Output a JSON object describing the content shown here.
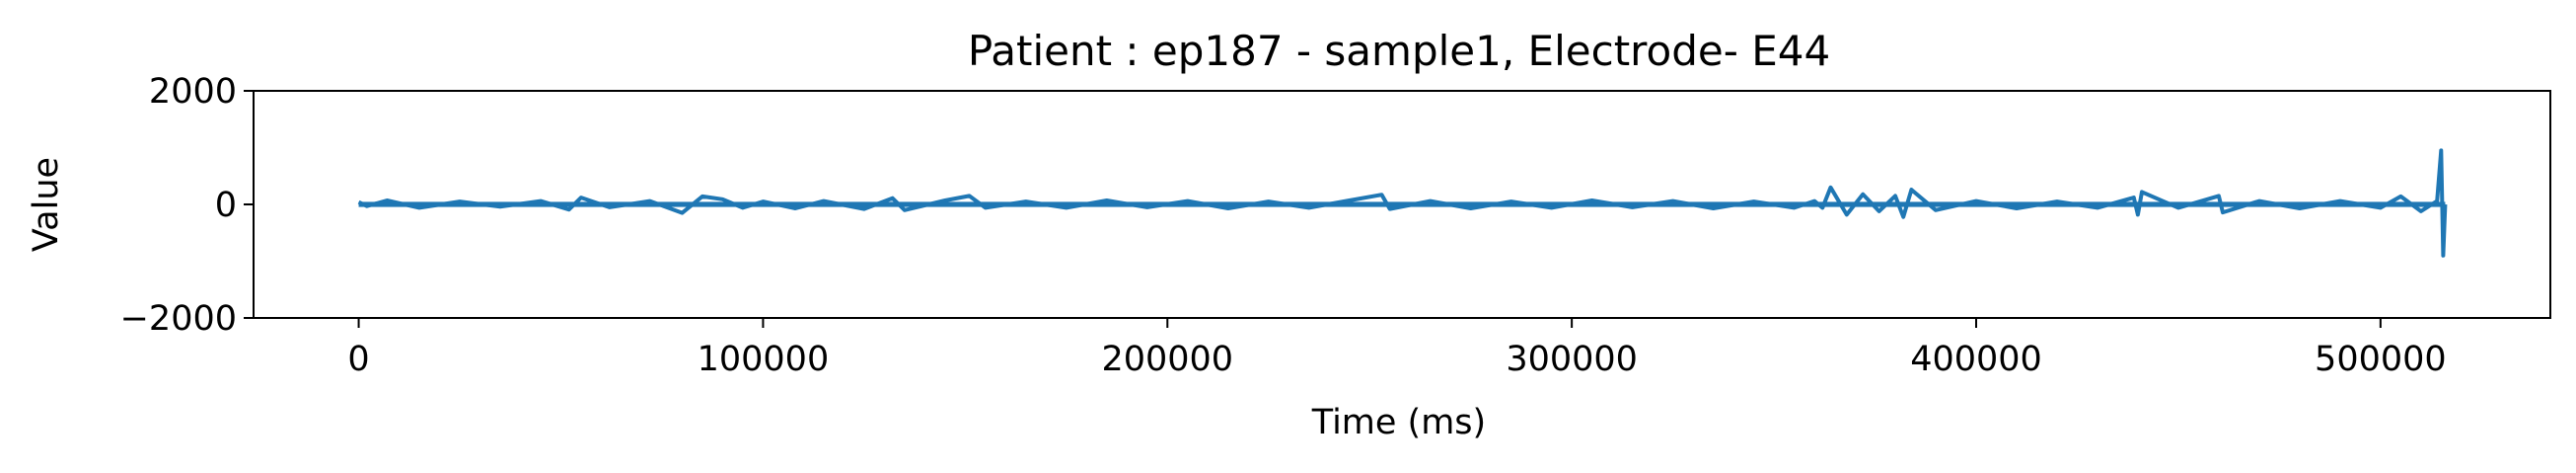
{
  "chart_data": {
    "type": "line",
    "title": "Patient : ep187 - sample1, Electrode- E44",
    "xlabel": "Time (ms)",
    "ylabel": "Value",
    "xlim": [
      -26000,
      542000
    ],
    "ylim": [
      -2000,
      2000
    ],
    "xticks": [
      0,
      100000,
      200000,
      300000,
      400000,
      500000
    ],
    "xtick_labels": [
      "0",
      "100000",
      "200000",
      "300000",
      "400000",
      "500000"
    ],
    "yticks": [
      2000,
      0,
      -2000
    ],
    "ytick_labels": [
      "2000",
      "0",
      "−2000"
    ],
    "grid": false,
    "legend": "none",
    "series": [
      {
        "color": "#1f77b4",
        "x": [
          0,
          2000,
          7000,
          15000,
          25000,
          35000,
          45000,
          52000,
          55000,
          62000,
          72000,
          80000,
          85000,
          90000,
          95000,
          100000,
          108000,
          115000,
          125000,
          132000,
          135000,
          145000,
          151000,
          155000,
          165000,
          175000,
          185000,
          195000,
          205000,
          215000,
          225000,
          235000,
          245000,
          253000,
          255000,
          265000,
          275000,
          285000,
          295000,
          305000,
          315000,
          325000,
          335000,
          345000,
          355000,
          360000,
          362000,
          364000,
          368000,
          372000,
          376000,
          380000,
          382000,
          384000,
          390000,
          400000,
          410000,
          420000,
          430000,
          439000,
          440000,
          441000,
          450000,
          460000,
          461000,
          470000,
          480000,
          490000,
          500000,
          505000,
          510000,
          514000,
          515000,
          515500,
          516000
        ],
        "y": [
          40,
          -30,
          70,
          -60,
          50,
          -40,
          60,
          -90,
          120,
          -50,
          60,
          -150,
          140,
          90,
          -60,
          50,
          -70,
          60,
          -80,
          110,
          -100,
          70,
          150,
          -60,
          50,
          -60,
          70,
          -50,
          60,
          -70,
          50,
          -60,
          70,
          170,
          -80,
          60,
          -70,
          50,
          -60,
          70,
          -50,
          60,
          -70,
          50,
          -60,
          60,
          -60,
          300,
          -180,
          180,
          -120,
          150,
          -220,
          260,
          -100,
          60,
          -70,
          50,
          -60,
          120,
          -180,
          220,
          -60,
          150,
          -140,
          60,
          -70,
          60,
          -60,
          140,
          -120,
          60,
          950,
          -900,
          0
        ]
      }
    ]
  }
}
